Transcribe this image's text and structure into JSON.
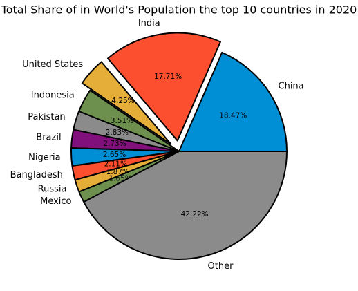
{
  "chart_data": {
    "type": "pie",
    "title": "Total Share of in World's Population the top 10 countries in 2020",
    "categories": [
      "China",
      "India",
      "United States",
      "Indonesia",
      "Pakistan",
      "Brazil",
      "Nigeria",
      "Bangladesh",
      "Russia",
      "Mexico",
      "Other"
    ],
    "values": [
      18.47,
      17.71,
      4.25,
      3.51,
      2.83,
      2.73,
      2.65,
      2.11,
      1.87,
      1.65,
      42.22
    ],
    "value_labels": [
      "18.47%",
      "17.71%",
      "4.25%",
      "3.51%",
      "2.83%",
      "2.73%",
      "2.65%",
      "2.11%",
      "1.87%",
      "1.65%",
      "42.22%"
    ],
    "colors": [
      "#008fd5",
      "#fc4f30",
      "#e5ae38",
      "#6d904f",
      "#8b8b8b",
      "#810f7c",
      "#008fd5",
      "#fc4f30",
      "#e5ae38",
      "#6d904f",
      "#8b8b8b"
    ],
    "explode": [
      0,
      0.1,
      0.1,
      0,
      0,
      0,
      0,
      0,
      0,
      0,
      0
    ]
  }
}
